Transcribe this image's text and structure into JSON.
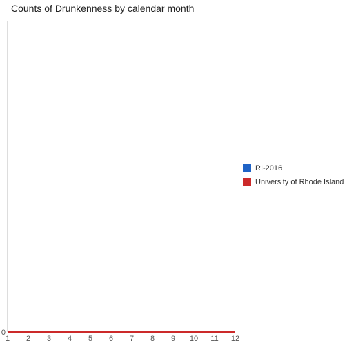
{
  "chart_data": {
    "type": "line",
    "title": "Counts of Drunkenness by calendar month",
    "xlabel": "",
    "ylabel": "",
    "x": [
      1,
      2,
      3,
      4,
      5,
      6,
      7,
      8,
      9,
      10,
      11,
      12
    ],
    "x_tick_labels": [
      "1",
      "2",
      "3",
      "4",
      "5",
      "6",
      "7",
      "8",
      "9",
      "10",
      "11",
      "12"
    ],
    "y_tick_labels": [
      "0"
    ],
    "xlim": [
      1,
      12
    ],
    "ylim": [
      0,
      1
    ],
    "grid": false,
    "legend_position": "right",
    "series": [
      {
        "name": "RI-2016",
        "color": "#1f63c6",
        "values": [
          0,
          0,
          0,
          0,
          0,
          0,
          0,
          0,
          0,
          0,
          0,
          0
        ]
      },
      {
        "name": "University of Rhode Island",
        "color": "#cc2a2a",
        "values": [
          0,
          0,
          0,
          0,
          0,
          0,
          0,
          0,
          0,
          0,
          0,
          0
        ]
      }
    ]
  }
}
